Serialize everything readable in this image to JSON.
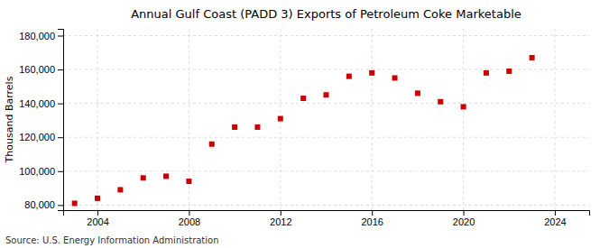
{
  "chart_data": {
    "type": "scatter",
    "title": "Annual Gulf Coast (PADD 3) Exports of Petroleum Coke Marketable",
    "ylabel": "Thousand Barrels",
    "annotations": [
      "Source: U.S. Energy Information Administration"
    ],
    "x": [
      2003,
      2004,
      2005,
      2006,
      2007,
      2008,
      2009,
      2010,
      2011,
      2012,
      2013,
      2014,
      2015,
      2016,
      2017,
      2018,
      2019,
      2020,
      2021,
      2022,
      2023
    ],
    "values": [
      81000,
      84000,
      89000,
      96000,
      97000,
      94000,
      116000,
      126000,
      126000,
      131000,
      143000,
      145000,
      156000,
      158000,
      155000,
      146000,
      141000,
      138000,
      158000,
      159000,
      167000
    ],
    "color": "#cc0000",
    "marker": "square",
    "xlim": [
      2002.5,
      2025.5
    ],
    "xticks": [
      2004,
      2008,
      2012,
      2016,
      2020,
      2024
    ],
    "ylim": [
      77000,
      184000
    ],
    "yticks": [
      {
        "value": 80000,
        "label": "80,000"
      },
      {
        "value": 100000,
        "label": "100,000"
      },
      {
        "value": 120000,
        "label": "120,000"
      },
      {
        "value": 140000,
        "label": "140,000"
      },
      {
        "value": 160000,
        "label": "160,000"
      },
      {
        "value": 180000,
        "label": "180,000"
      }
    ],
    "grid": true
  }
}
